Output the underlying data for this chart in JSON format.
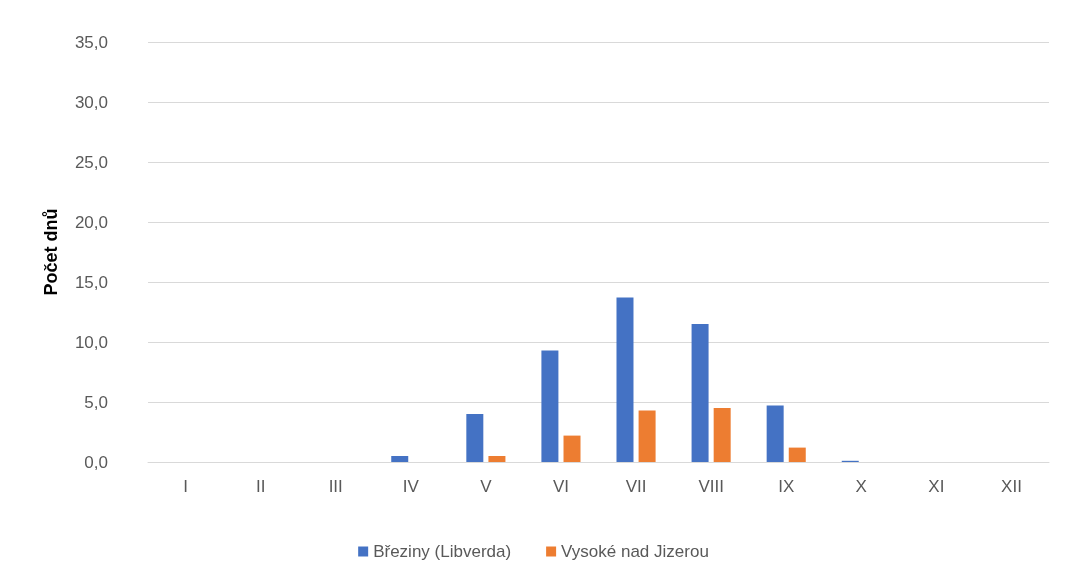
{
  "chart_data": {
    "type": "bar",
    "ylabel": "Počet dnů",
    "categories": [
      "I",
      "II",
      "III",
      "IV",
      "V",
      "VI",
      "VII",
      "VIII",
      "IX",
      "X",
      "XI",
      "XII"
    ],
    "series": [
      {
        "name": "Březiny (Libverda)",
        "color": "#4472c4",
        "values": [
          0,
          0,
          0,
          0.5,
          4.0,
          9.3,
          13.7,
          11.5,
          4.7,
          0.1,
          0,
          0
        ]
      },
      {
        "name": "Vysoké nad Jizerou",
        "color": "#ed7d31",
        "values": [
          0,
          0,
          0,
          0,
          0.5,
          2.2,
          4.3,
          4.5,
          1.2,
          0,
          0,
          0
        ]
      }
    ],
    "ylim": [
      0,
      35
    ],
    "yticks": [
      {
        "value": 0,
        "label": "0,0"
      },
      {
        "value": 5,
        "label": "5,0"
      },
      {
        "value": 10,
        "label": "10,0"
      },
      {
        "value": 15,
        "label": "15,0"
      },
      {
        "value": 20,
        "label": "20,0"
      },
      {
        "value": 25,
        "label": "25,0"
      },
      {
        "value": 30,
        "label": "30,0"
      },
      {
        "value": 35,
        "label": "35,0"
      }
    ],
    "grid": "y",
    "legend": "bottom"
  }
}
